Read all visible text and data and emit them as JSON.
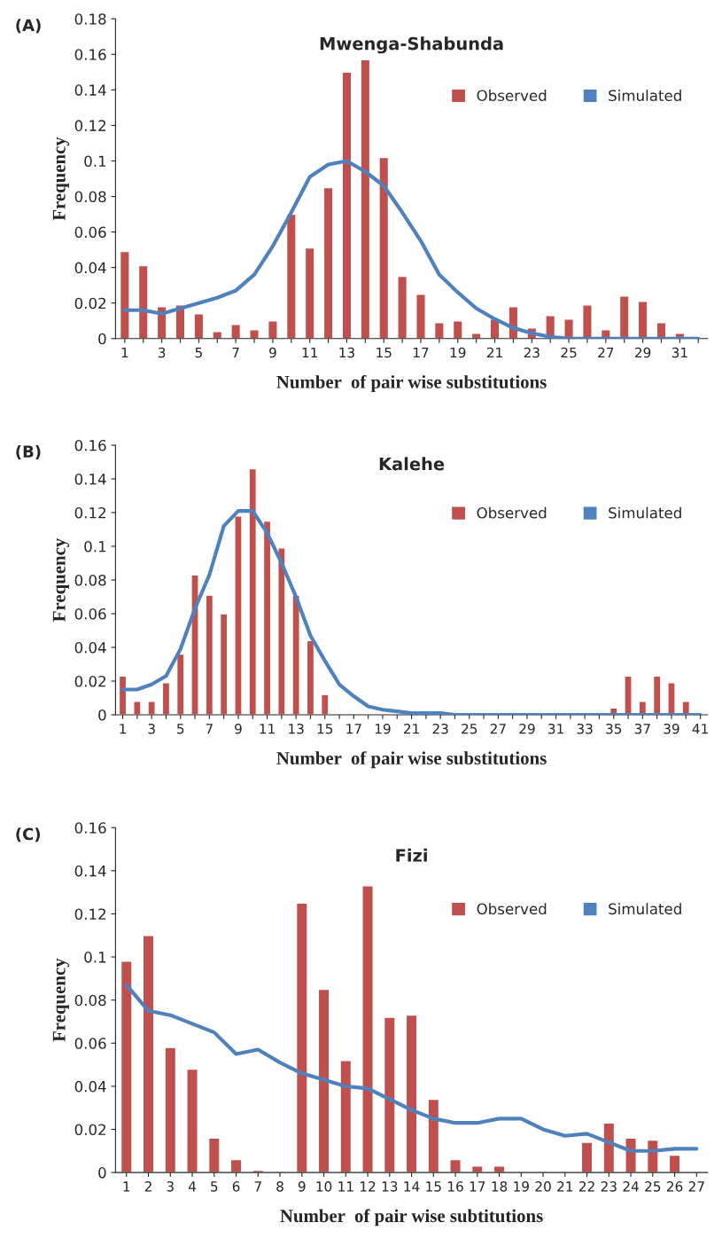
{
  "chart_data": [
    {
      "type": "bar",
      "title": "Mwenga-Shabunda",
      "xlabel": "Number  of pair wise substitutions",
      "ylabel": "Frequency",
      "annotations": [
        "(A)"
      ],
      "categories": [
        "1",
        null,
        "3",
        null,
        "5",
        null,
        "7",
        null,
        "9",
        null,
        "11",
        null,
        "13",
        null,
        "15",
        null,
        "17",
        null,
        "19",
        null,
        "21",
        null,
        "23",
        null,
        "25",
        null,
        "27",
        null,
        "29",
        null,
        "31",
        null
      ],
      "series": [
        {
          "name": "Observed",
          "color": "#c0504d",
          "values": [
            0.049,
            0.041,
            0.018,
            0.019,
            0.014,
            0.004,
            0.008,
            0.005,
            0.01,
            0.07,
            0.051,
            0.085,
            0.15,
            0.157,
            0.102,
            0.035,
            0.025,
            0.009,
            0.01,
            0.003,
            0.011,
            0.018,
            0.006,
            0.013,
            0.011,
            0.019,
            0.005,
            0.024,
            0.021,
            0.009,
            0.003,
            null
          ]
        },
        {
          "name": "Simulated",
          "type": "line",
          "color": "#4f81bd",
          "values": [
            0.016,
            0.016,
            0.014,
            0.017,
            0.02,
            0.023,
            0.027,
            0.036,
            0.052,
            0.071,
            0.091,
            0.098,
            0.1,
            0.094,
            0.086,
            0.071,
            0.055,
            0.036,
            0.026,
            0.017,
            0.011,
            0.006,
            0.003,
            0.001,
            0,
            0,
            0,
            0,
            0,
            0,
            0,
            0
          ]
        }
      ],
      "ylim": [
        0,
        0.18
      ],
      "yticks": [
        0,
        0.02,
        0.04,
        0.06,
        0.08,
        0.1,
        0.12,
        0.14,
        0.16,
        0.18
      ],
      "legend": "top right",
      "grid": false
    },
    {
      "type": "bar",
      "title": "Kalehe",
      "xlabel": "Number  of pair wise substitutions",
      "ylabel": "Frequency",
      "annotations": [
        "(B)"
      ],
      "categories": [
        "1",
        null,
        "3",
        null,
        "5",
        null,
        "7",
        null,
        "9",
        null,
        "11",
        null,
        "13",
        null,
        "15",
        null,
        "17",
        null,
        "19",
        null,
        "21",
        null,
        "23",
        null,
        "25",
        null,
        "27",
        null,
        "29",
        null,
        "31",
        null,
        "33",
        null,
        "35",
        null,
        "37",
        null,
        "39",
        null,
        "41"
      ],
      "series": [
        {
          "name": "Observed",
          "color": "#c0504d",
          "values": [
            0.023,
            0.008,
            0.008,
            0.019,
            0.036,
            0.083,
            0.071,
            0.06,
            0.118,
            0.146,
            0.115,
            0.099,
            0.071,
            0.044,
            0.012,
            null,
            null,
            null,
            null,
            null,
            null,
            null,
            null,
            null,
            null,
            null,
            null,
            null,
            null,
            null,
            null,
            null,
            null,
            null,
            0.004,
            0.023,
            0.008,
            0.023,
            0.019,
            0.008,
            null
          ]
        },
        {
          "name": "Simulated",
          "type": "line",
          "color": "#4f81bd",
          "values": [
            0.015,
            0.015,
            0.018,
            0.023,
            0.039,
            0.063,
            0.083,
            0.112,
            0.121,
            0.121,
            0.108,
            0.09,
            0.07,
            0.047,
            0.032,
            0.018,
            0.011,
            0.005,
            0.003,
            0.002,
            0.001,
            0.001,
            0.001,
            0,
            0,
            0,
            0,
            0,
            0,
            0,
            0,
            0,
            0,
            0,
            0,
            0,
            0,
            0,
            0,
            0,
            0
          ]
        }
      ],
      "ylim": [
        0,
        0.16
      ],
      "yticks": [
        0,
        0.02,
        0.04,
        0.06,
        0.08,
        0.1,
        0.12,
        0.14,
        0.16
      ],
      "legend": "top right",
      "grid": false
    },
    {
      "type": "bar",
      "title": "Fizi",
      "xlabel": "Number  of pair wise subtitutions",
      "ylabel": "Frequency",
      "annotations": [
        "(C)"
      ],
      "categories": [
        "1",
        "2",
        "3",
        "4",
        "5",
        "6",
        "7",
        "8",
        "9",
        "10",
        "11",
        "12",
        "13",
        "14",
        "15",
        "16",
        "17",
        "18",
        "19",
        "20",
        "21",
        "22",
        "23",
        "24",
        "25",
        "26",
        "27"
      ],
      "series": [
        {
          "name": "Observed",
          "color": "#c0504d",
          "values": [
            0.098,
            0.11,
            0.058,
            0.048,
            0.016,
            0.006,
            0.001,
            null,
            0.125,
            0.085,
            0.052,
            0.133,
            0.072,
            0.073,
            0.034,
            0.006,
            0.003,
            0.003,
            null,
            null,
            null,
            0.014,
            0.023,
            0.016,
            0.015,
            0.008,
            null
          ]
        },
        {
          "name": "Simulated",
          "type": "line",
          "color": "#4f81bd",
          "values": [
            0.087,
            0.075,
            0.073,
            0.069,
            0.065,
            0.055,
            0.057,
            0.051,
            0.046,
            0.043,
            0.04,
            0.039,
            0.034,
            0.029,
            0.025,
            0.023,
            0.023,
            0.025,
            0.025,
            0.02,
            0.017,
            0.018,
            0.014,
            0.01,
            0.01,
            0.011,
            0.011
          ]
        }
      ],
      "ylim": [
        0,
        0.16
      ],
      "yticks": [
        0,
        0.02,
        0.04,
        0.06,
        0.08,
        0.1,
        0.12,
        0.14,
        0.16
      ],
      "legend": "top right",
      "grid": false
    }
  ]
}
